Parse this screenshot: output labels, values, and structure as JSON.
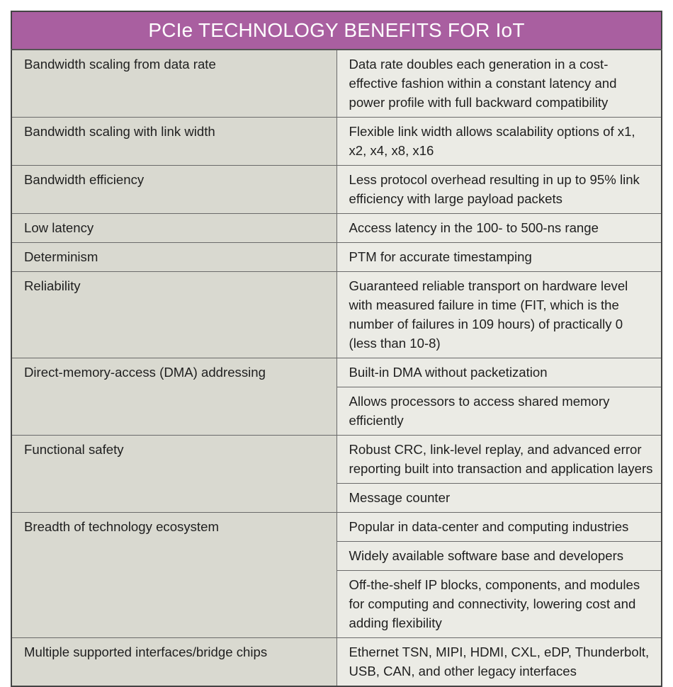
{
  "title": "PCIe TECHNOLOGY BENEFITS FOR IoT",
  "colors": {
    "header_bg": "#a95fa0",
    "left_col_bg": "#d9d9d0",
    "right_col_bg": "#ebebe5"
  },
  "rows": [
    {
      "feature": "Bandwidth scaling from data rate",
      "benefits": [
        "Data rate doubles each generation in a cost-effective fashion within a constant latency and power profile with full backward compatibility"
      ]
    },
    {
      "feature": "Bandwidth scaling with link width",
      "benefits": [
        "Flexible link width allows scalability options of x1, x2, x4, x8, x16"
      ]
    },
    {
      "feature": "Bandwidth efficiency",
      "benefits": [
        "Less protocol overhead resulting in up to 95% link efficiency with large payload packets"
      ]
    },
    {
      "feature": "Low latency",
      "benefits": [
        "Access latency in the 100- to 500-ns range"
      ]
    },
    {
      "feature": "Determinism",
      "benefits": [
        "PTM for accurate timestamping"
      ]
    },
    {
      "feature": "Reliability",
      "benefits": [
        "Guaranteed reliable transport on hardware level with measured failure in time (FIT, which is the number of failures in 109 hours) of practically 0 (less than 10-8)"
      ]
    },
    {
      "feature": "Direct-memory-access (DMA) addressing",
      "benefits": [
        "Built-in DMA without packetization",
        "Allows processors to access shared memory efficiently"
      ]
    },
    {
      "feature": "Functional safety",
      "benefits": [
        "Robust CRC, link-level replay, and advanced error reporting built into transaction and application layers",
        "Message counter"
      ]
    },
    {
      "feature": "Breadth of technology ecosystem",
      "benefits": [
        "Popular in data-center and computing industries",
        "Widely available software base and developers",
        "Off-the-shelf IP blocks, components, and modules for computing and connectivity, lowering cost and adding flexibility"
      ]
    },
    {
      "feature": "Multiple supported interfaces/bridge chips",
      "benefits": [
        "Ethernet TSN, MIPI, HDMI, CXL, eDP, Thunderbolt, USB, CAN, and other legacy interfaces"
      ]
    }
  ]
}
